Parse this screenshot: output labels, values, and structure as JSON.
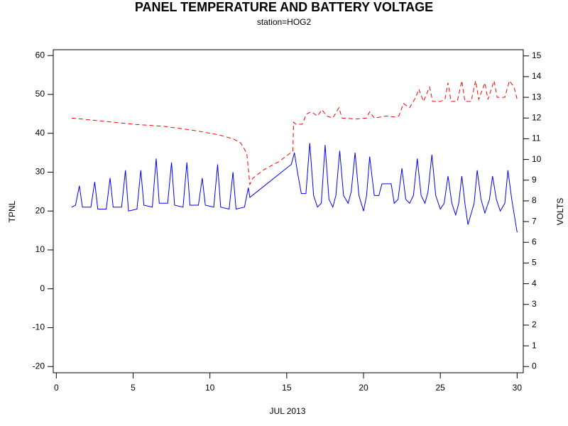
{
  "chart_data": {
    "type": "line",
    "title": "PANEL TEMPERATURE AND BATTERY VOLTAGE",
    "subtitle": "station=HOG2",
    "x_label": "JUL 2013",
    "y_label": "TPNL",
    "y2_label": "VOLTS",
    "xlim": [
      -0.2,
      30.4
    ],
    "xticks": [
      0,
      5,
      10,
      15,
      20,
      25,
      30
    ],
    "ylim": [
      -21.6,
      61.5
    ],
    "yticks": [
      -20,
      -10,
      0,
      10,
      20,
      30,
      40,
      50,
      60
    ],
    "y2lim": [
      -0.3,
      15.3
    ],
    "y2ticks": [
      0,
      1,
      2,
      3,
      4,
      5,
      6,
      7,
      8,
      9,
      10,
      11,
      12,
      13,
      14,
      15
    ],
    "series": [
      {
        "color": "#0000ff",
        "dash": "solid",
        "x": [
          1.0,
          1.25,
          1.5,
          1.7,
          2.25,
          2.5,
          2.7,
          3.25,
          3.5,
          3.7,
          4.25,
          4.5,
          4.7,
          5.25,
          5.5,
          5.7,
          6.25,
          6.5,
          6.7,
          7.25,
          7.5,
          7.7,
          8.25,
          8.5,
          8.7,
          9.25,
          9.5,
          9.7,
          10.25,
          10.5,
          10.7,
          11.25,
          11.5,
          11.7,
          12.25,
          12.5,
          12.6,
          15.3,
          15.5,
          15.7,
          15.95,
          16.25,
          16.5,
          16.75,
          17.0,
          17.25,
          17.5,
          17.75,
          18.0,
          18.2,
          18.45,
          18.7,
          19.0,
          19.2,
          19.45,
          19.7,
          20.0,
          20.2,
          20.4,
          20.7,
          21.0,
          21.2,
          21.8,
          22.0,
          22.25,
          22.5,
          22.75,
          23.0,
          23.25,
          23.5,
          23.75,
          24.0,
          24.2,
          24.45,
          24.7,
          25.0,
          25.25,
          25.5,
          25.75,
          26.0,
          26.2,
          26.4,
          26.6,
          26.8,
          27.2,
          27.4,
          27.65,
          27.9,
          28.2,
          28.4,
          28.65,
          28.9,
          29.2,
          29.4,
          29.65,
          30.0
        ],
        "values": [
          21,
          21.5,
          26.5,
          21,
          21,
          27.5,
          20.5,
          20.5,
          28.5,
          21,
          21,
          30.5,
          20,
          20.5,
          30.5,
          21.5,
          21,
          33.5,
          22,
          22,
          32.5,
          21.5,
          21,
          32.5,
          21.5,
          21.5,
          28.5,
          21.5,
          21,
          32,
          21,
          20.5,
          30,
          20.5,
          21,
          26,
          23.5,
          32,
          35,
          30,
          24.5,
          24.5,
          37.5,
          24,
          21,
          22,
          37,
          23,
          21,
          24,
          35.5,
          24,
          22,
          25,
          35,
          24,
          20,
          24,
          34,
          24,
          24,
          27,
          27,
          22,
          23,
          31,
          23,
          22,
          24,
          33.5,
          24,
          22,
          25,
          34.5,
          24,
          20.5,
          22,
          29,
          22,
          19,
          22,
          29,
          22,
          16.5,
          22,
          30.5,
          23,
          19.5,
          23,
          29,
          23,
          20,
          22,
          30.5,
          23,
          14.5
        ]
      },
      {
        "color": "#ff0000",
        "dash": "dashed",
        "axis": "y2",
        "x": [
          1.0,
          3.0,
          5.0,
          7.0,
          9.0,
          10.5,
          11.5,
          12.0,
          12.4,
          12.6,
          12.8,
          13.5,
          14.5,
          15.4,
          15.45,
          15.6,
          16.0,
          16.3,
          16.6,
          17.0,
          17.3,
          17.6,
          18.0,
          18.4,
          18.6,
          19.5,
          20.2,
          20.4,
          20.7,
          21.5,
          22.0,
          22.3,
          22.6,
          23.0,
          23.4,
          23.6,
          23.9,
          24.3,
          24.5,
          25.0,
          25.3,
          25.5,
          25.7,
          26.1,
          26.4,
          26.6,
          27.0,
          27.3,
          27.5,
          27.9,
          28.1,
          28.5,
          28.7,
          29.2,
          29.5,
          29.8,
          30.0
        ],
        "values": [
          12.0,
          11.85,
          11.7,
          11.6,
          11.4,
          11.2,
          11.0,
          10.8,
          10.3,
          8.8,
          9.1,
          9.5,
          9.9,
          10.4,
          11.8,
          11.7,
          11.7,
          12.2,
          12.3,
          12.1,
          12.4,
          12.1,
          12.0,
          12.5,
          12.0,
          11.95,
          12.0,
          12.3,
          12.0,
          12.1,
          12.05,
          12.1,
          12.7,
          12.5,
          13.0,
          13.4,
          12.8,
          13.5,
          12.8,
          12.8,
          12.9,
          13.7,
          12.8,
          12.8,
          13.8,
          12.8,
          12.8,
          13.8,
          12.9,
          13.7,
          12.9,
          13.8,
          13.0,
          13.0,
          13.8,
          13.5,
          12.9
        ]
      }
    ]
  }
}
